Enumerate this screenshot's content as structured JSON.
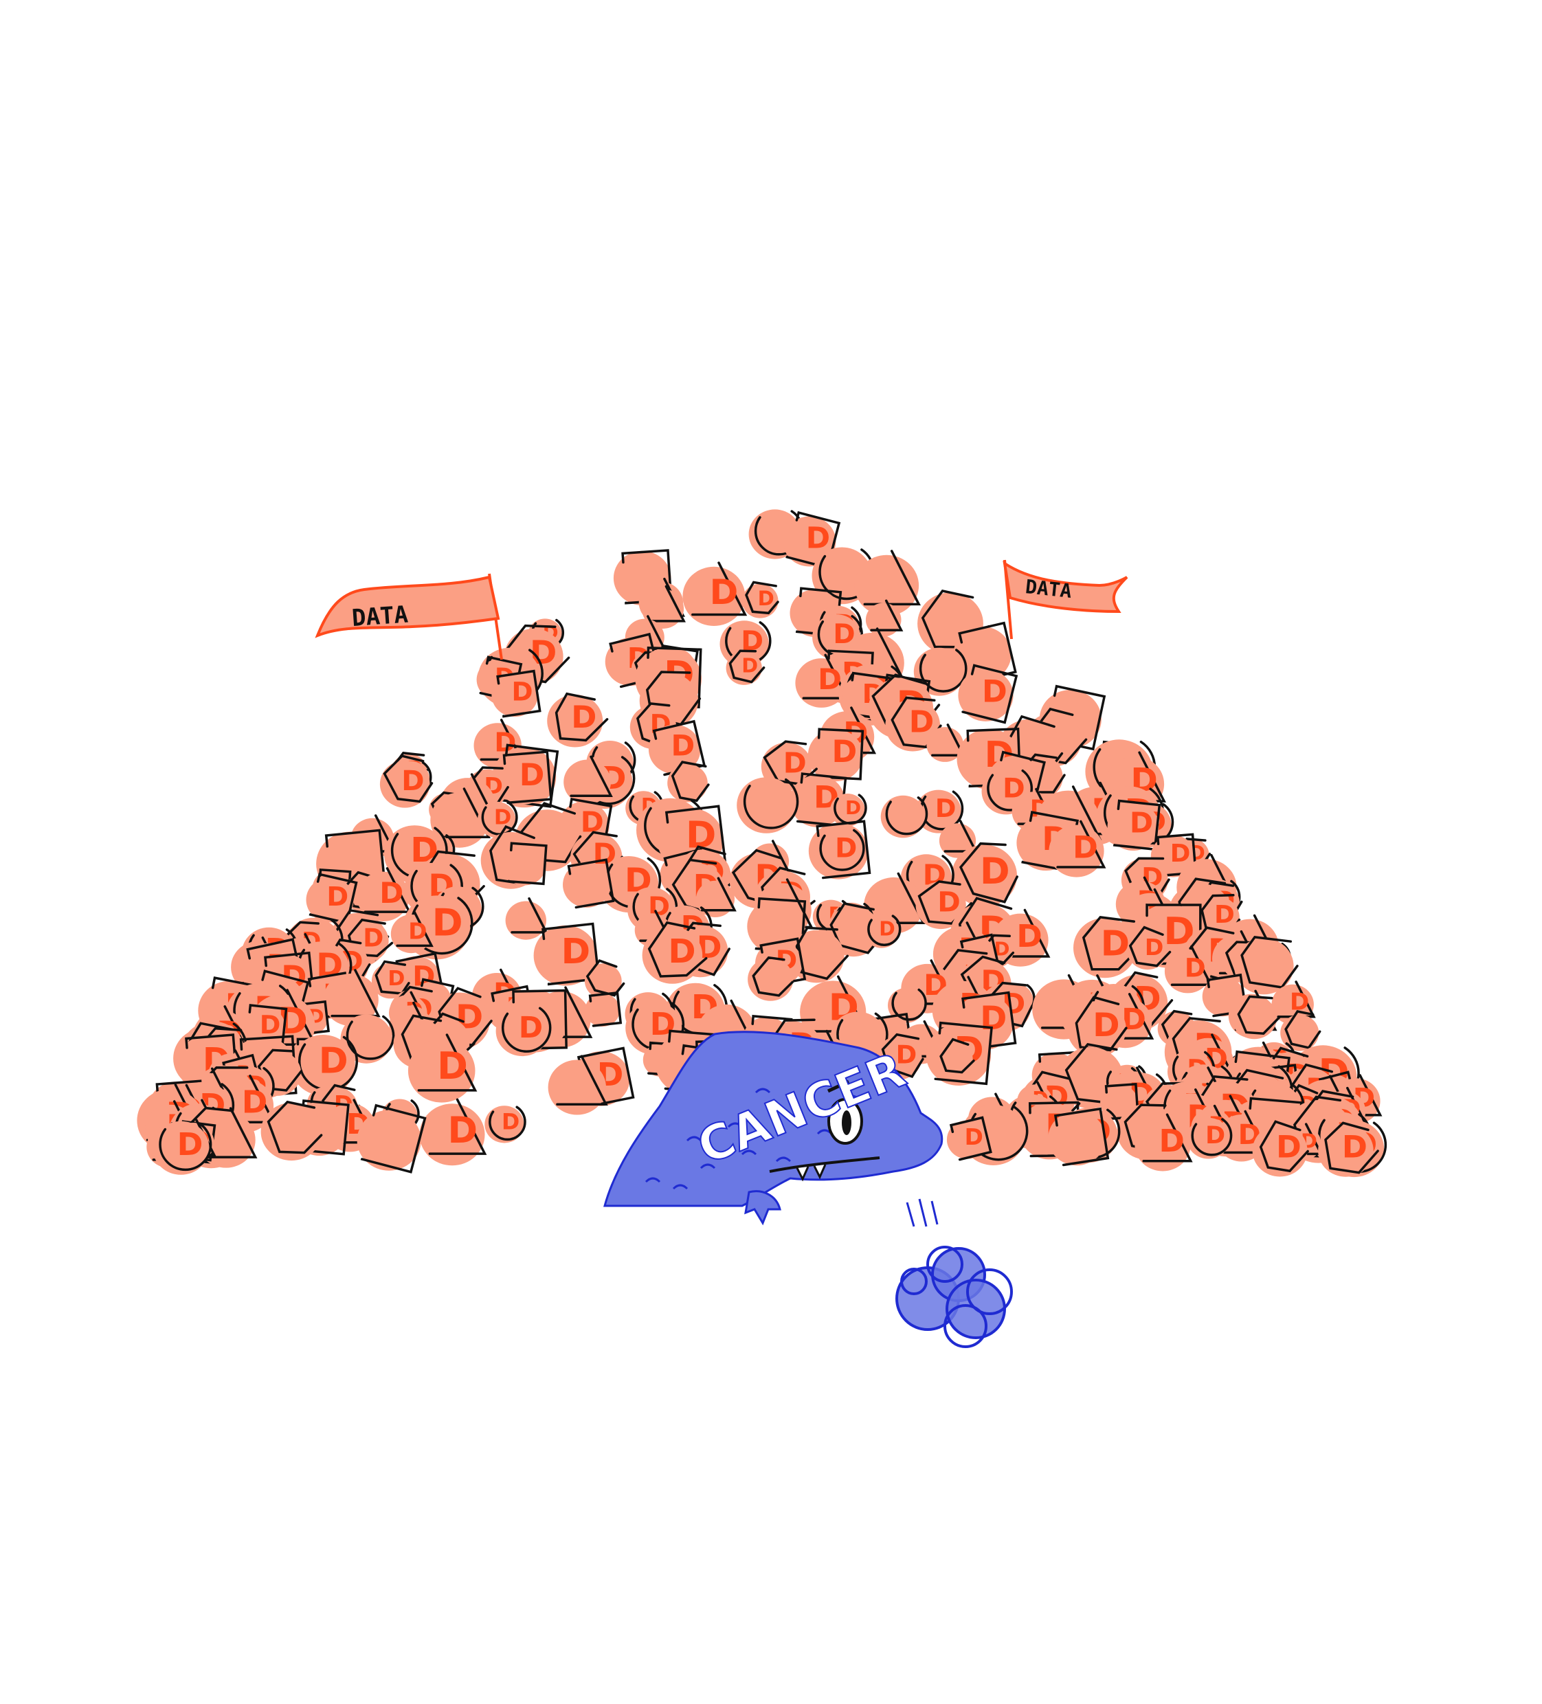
{
  "illustration": {
    "flag_left_label": "DATA",
    "flag_right_label": "DATA",
    "monster_label": "CANCER",
    "item_letter": "D",
    "colors": {
      "background": "#ffffff",
      "data_fill": "#fb9f84",
      "data_letter": "#ff4a1c",
      "outline": "#111111",
      "monster_fill": "#6a78e4",
      "monster_line": "#1f2bd1",
      "flag_line": "#ff4a1c"
    },
    "icons": [
      "data-pile",
      "data-flag-icon",
      "cancer-monster-icon",
      "dust-cloud-icon"
    ]
  }
}
